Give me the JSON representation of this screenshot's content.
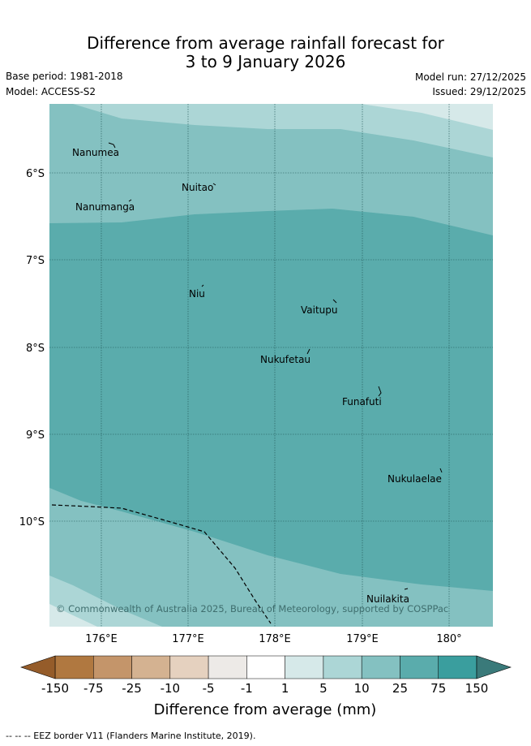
{
  "title": {
    "line1": "Difference from average rainfall forecast for",
    "line2": "3 to 9 January 2026"
  },
  "meta": {
    "base_period": "Base period: 1981-2018",
    "model": "Model: ACCESS-S2",
    "model_run": "Model run: 27/12/2025",
    "issued": "Issued: 29/12/2025"
  },
  "map": {
    "lat_labels": [
      "6°S",
      "7°S",
      "8°S",
      "9°S",
      "10°S"
    ],
    "lon_labels": [
      "176°E",
      "177°E",
      "178°E",
      "179°E",
      "180°"
    ],
    "islands": [
      "Nanumea",
      "Nuitao",
      "Nanumanga",
      "Niu",
      "Vaitupu",
      "Nukufetau",
      "Funafuti",
      "Nukulaelae",
      "Nuilakita"
    ],
    "copyright": "© Commonwealth of Australia 2025, Bureau of Meteorology, supported by COSPPac"
  },
  "legend": {
    "ticks": [
      "-150",
      "-75",
      "-25",
      "-10",
      "-5",
      "-1",
      "1",
      "5",
      "10",
      "25",
      "75",
      "150"
    ],
    "colors": [
      "#b07840",
      "#c4956a",
      "#d4b291",
      "#e5d1bf",
      "#edeae7",
      "#ffffff",
      "#d6e9e9",
      "#acd6d6",
      "#84c1c1",
      "#5aacac",
      "#3a9e9e"
    ],
    "low_arrow_color": "#955c2a",
    "high_arrow_color": "#3a7a7a",
    "title": "Difference from average (mm)"
  },
  "footer": "-- -- -- EEZ border V11 (Flanders Marine Institute, 2019)."
}
